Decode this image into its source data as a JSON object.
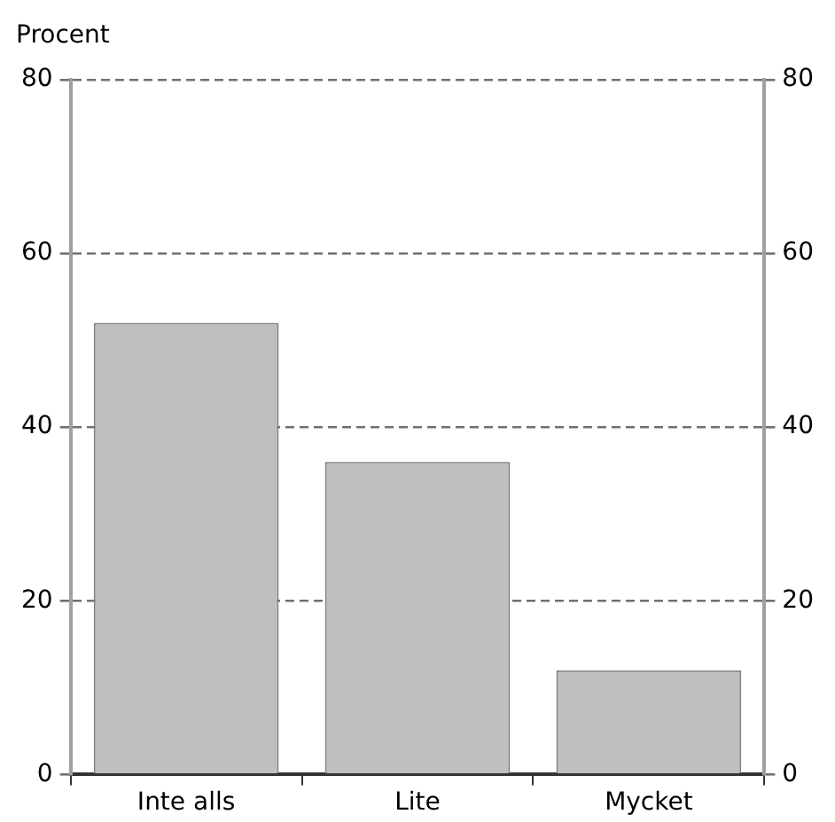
{
  "chart_data": {
    "type": "bar",
    "ylabel": "Procent",
    "categories": [
      "Inte alls",
      "Lite",
      "Mycket"
    ],
    "values": [
      52,
      36,
      12
    ],
    "color": "#bfbfbf",
    "ylim": [
      0,
      80
    ],
    "yticks": [
      0,
      20,
      40,
      60,
      80
    ],
    "y2lim": [
      0,
      80
    ],
    "y2ticks": [
      0,
      20,
      40,
      60,
      80
    ],
    "grid": "y",
    "legend": false
  }
}
